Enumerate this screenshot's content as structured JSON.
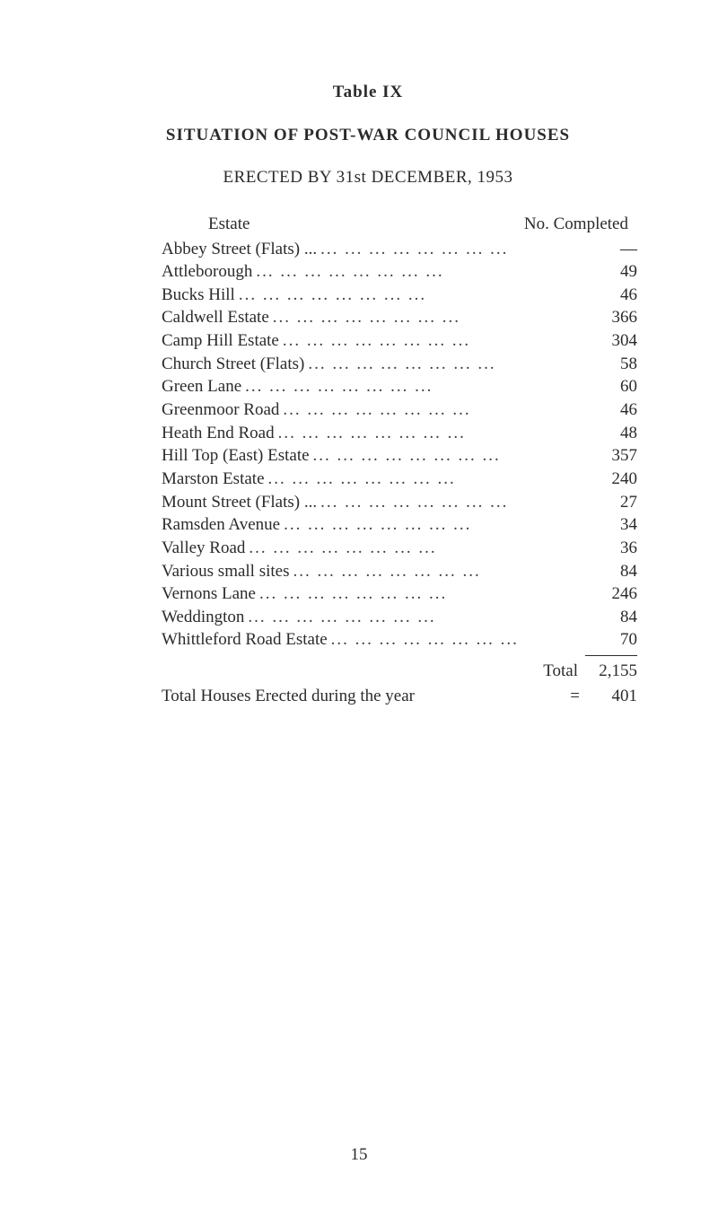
{
  "table_label": "Table IX",
  "title": "SITUATION OF POST-WAR COUNCIL HOUSES",
  "subtitle": "ERECTED BY 31st DECEMBER, 1953",
  "header": {
    "estate": "Estate",
    "completed": "No. Completed"
  },
  "rows": [
    {
      "estate": "Abbey Street (Flats) ...",
      "value": "—"
    },
    {
      "estate": "Attleborough",
      "value": "49"
    },
    {
      "estate": "Bucks Hill",
      "value": "46"
    },
    {
      "estate": "Caldwell Estate",
      "value": "366"
    },
    {
      "estate": "Camp Hill Estate",
      "value": "304"
    },
    {
      "estate": "Church Street (Flats)",
      "value": "58"
    },
    {
      "estate": "Green Lane",
      "value": "60"
    },
    {
      "estate": "Greenmoor Road",
      "value": "46"
    },
    {
      "estate": "Heath End Road",
      "value": "48"
    },
    {
      "estate": "Hill Top (East) Estate",
      "value": "357"
    },
    {
      "estate": "Marston Estate",
      "value": "240"
    },
    {
      "estate": "Mount Street (Flats) ...",
      "value": "27"
    },
    {
      "estate": "Ramsden Avenue",
      "value": "34"
    },
    {
      "estate": "Valley Road",
      "value": "36"
    },
    {
      "estate": "Various small sites",
      "value": "84"
    },
    {
      "estate": "Vernons Lane",
      "value": "246"
    },
    {
      "estate": "Weddington",
      "value": "84"
    },
    {
      "estate": "Whittleford Road Estate",
      "value": "70"
    }
  ],
  "total": {
    "label": "Total",
    "value": "2,155"
  },
  "grand": {
    "text": "Total Houses Erected during the year",
    "eq": "=",
    "value": "401"
  },
  "dots_fill": "...   ...   ...   ...   ...   ...   ...   ...",
  "page_number": "15"
}
